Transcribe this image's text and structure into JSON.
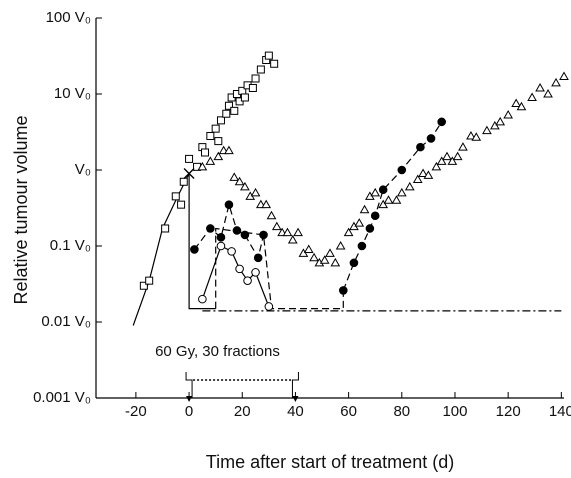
{
  "chart_data": {
    "type": "scatter",
    "x_label": "Time after start of treatment (d)",
    "y_label": "Relative tumour volume",
    "xlim": [
      -35,
      141
    ],
    "ylim": [
      0.001,
      100
    ],
    "log_y": true,
    "xticks": [
      -20,
      0,
      20,
      40,
      60,
      80,
      100,
      120,
      140
    ],
    "yticks": [
      {
        "value": 100,
        "label": "100 V₀"
      },
      {
        "value": 10,
        "label": "10 V₀"
      },
      {
        "value": 1,
        "label": "V₀"
      },
      {
        "value": 0.1,
        "label": "0.1 V₀"
      },
      {
        "value": 0.01,
        "label": "0.01 V₀"
      },
      {
        "value": 0.001,
        "label": "0.001 V₀"
      }
    ],
    "annotation": {
      "label": "60 Gy, 30 fractions",
      "start": 0,
      "end": 40
    },
    "series": [
      {
        "marker": "none",
        "line": "solid",
        "color": "#000",
        "x": [
          -21,
          -15,
          -10,
          -5,
          0,
          0,
          10
        ],
        "values": [
          0.009,
          0.035,
          0.17,
          0.4,
          0.9,
          0.015,
          0.015
        ]
      },
      {
        "marker": "none",
        "line": "dashed",
        "color": "#000",
        "x": [
          10,
          10,
          28,
          31,
          58,
          58
        ],
        "values": [
          0.015,
          0.17,
          0.14,
          0.015,
          0.015,
          0.026
        ]
      },
      {
        "marker": "none",
        "line": "dashdot",
        "color": "#000",
        "x": [
          5,
          140
        ],
        "values": [
          0.014,
          0.014
        ]
      },
      {
        "marker": "square",
        "line": "none",
        "color": "#000",
        "x": [
          -17,
          -15,
          -9,
          -5,
          -3,
          -2,
          0,
          3,
          5,
          6,
          8,
          10,
          11,
          12,
          14,
          15,
          16,
          17,
          18,
          19,
          20,
          21,
          22,
          24,
          25,
          27,
          29,
          30,
          32
        ],
        "values": [
          0.03,
          0.035,
          0.17,
          0.45,
          0.35,
          0.7,
          1.4,
          1.1,
          2,
          1.7,
          2.8,
          3.5,
          2.4,
          4.5,
          5.5,
          7,
          9,
          6,
          10,
          8,
          11,
          9,
          13,
          12,
          16,
          21,
          28,
          32,
          25
        ]
      },
      {
        "marker": "cross",
        "line": "none",
        "color": "#000",
        "x": [
          0
        ],
        "values": [
          0.9
        ]
      },
      {
        "marker": "triangle",
        "line": "none",
        "color": "#000",
        "x": [
          5,
          8,
          11,
          13,
          15,
          17,
          19,
          21,
          23,
          25,
          27,
          29,
          31,
          33,
          35,
          37,
          39,
          41,
          43,
          45,
          47,
          49,
          51,
          53,
          55,
          57,
          60,
          62,
          64,
          66,
          68,
          70,
          73,
          75,
          78,
          80,
          83,
          86,
          88,
          90,
          93,
          95,
          97,
          99,
          101,
          103,
          106,
          108,
          112,
          115,
          117,
          120,
          123,
          125,
          129,
          132,
          135,
          138,
          141
        ],
        "values": [
          1.1,
          1.3,
          1.5,
          1.8,
          1.8,
          0.8,
          0.7,
          0.6,
          0.45,
          0.5,
          0.35,
          0.35,
          0.25,
          0.18,
          0.15,
          0.15,
          0.12,
          0.15,
          0.08,
          0.09,
          0.07,
          0.06,
          0.065,
          0.08,
          0.06,
          0.1,
          0.15,
          0.18,
          0.2,
          0.3,
          0.45,
          0.5,
          0.35,
          0.4,
          0.4,
          0.5,
          0.6,
          0.75,
          0.9,
          0.85,
          1.1,
          1.3,
          1.5,
          1.3,
          1.5,
          2,
          2.8,
          2.7,
          3.3,
          3.8,
          4.3,
          5.3,
          7.5,
          6.8,
          9,
          12,
          10,
          14,
          17
        ]
      },
      {
        "marker": "circle-filled",
        "line": "dashed",
        "color": "#000",
        "x": [
          2,
          8,
          12,
          15,
          18,
          21,
          26,
          28,
          null,
          58,
          62,
          65,
          68,
          70,
          73,
          80,
          87,
          91,
          95
        ],
        "values": [
          0.09,
          0.17,
          0.13,
          0.35,
          0.16,
          0.14,
          0.07,
          0.14,
          null,
          0.026,
          0.06,
          0.1,
          0.17,
          0.25,
          0.55,
          1,
          2,
          2.6,
          4.3
        ]
      },
      {
        "marker": "circle-open",
        "line": "solid",
        "color": "#000",
        "x": [
          5,
          12,
          16,
          19,
          22,
          25,
          30
        ],
        "values": [
          0.02,
          0.1,
          0.085,
          0.05,
          0.035,
          0.045,
          0.016
        ]
      }
    ]
  }
}
